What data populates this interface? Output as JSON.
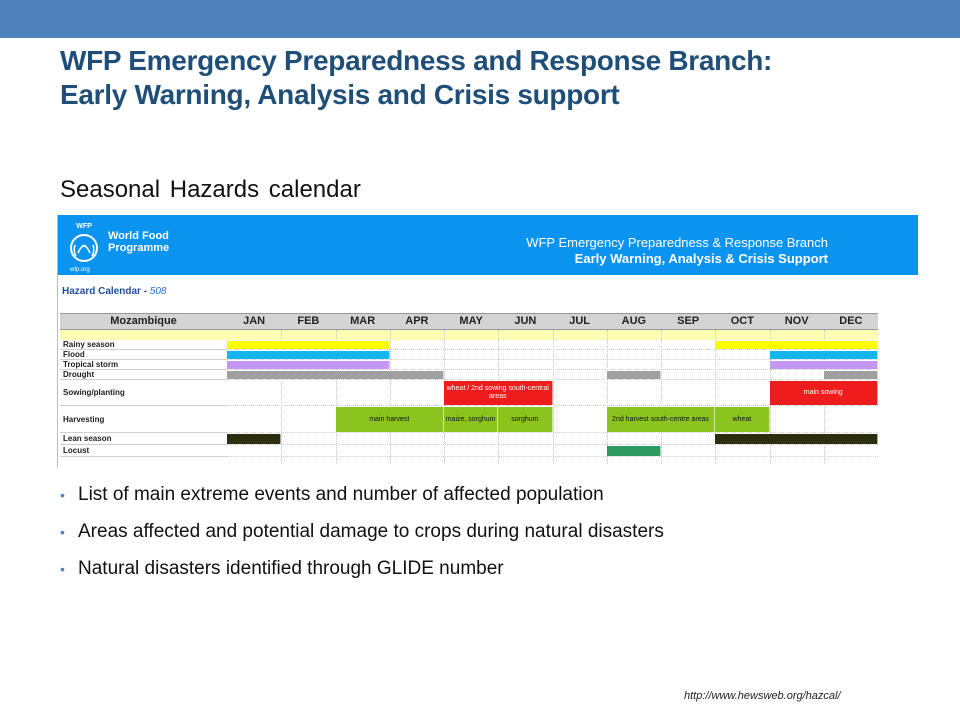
{
  "slide": {
    "title_line1": "WFP Emergency Preparedness and Response Branch:",
    "title_line2": "Early Warning, Analysis and Crisis support",
    "subtitle": "Seasonal  Hazards  calendar",
    "source_url": "http://www.hewsweb.org/hazcal/",
    "accent_color": "#4f81bd"
  },
  "calendar": {
    "logo_top": "WFP",
    "logo_line1": "World Food",
    "logo_line2": "Programme",
    "logo_url": "wfp.org",
    "banner_line1": "WFP Emergency Preparedness & Response Branch",
    "banner_line2": "Early Warning, Analysis & Crisis Support",
    "hazard_label": "Hazard Calendar - ",
    "hazard_label_code": "508",
    "country": "Mozambique",
    "months": [
      "JAN",
      "FEB",
      "MAR",
      "APR",
      "MAY",
      "JUN",
      "JUL",
      "AUG",
      "SEP",
      "OCT",
      "NOV",
      "DEC"
    ],
    "rows": [
      "Rainy season",
      "Flood",
      "Tropical storm",
      "Drought",
      "Sowing/planting",
      "Harvesting",
      "Lean season",
      "Locust"
    ],
    "bar_labels": {
      "wheat_sowing": "wheat / 2nd sowing south-central areas",
      "main_sowing": "main sowing",
      "main_harvest": "main harvest",
      "maize_sorghum": "maize, sorghum",
      "sorghum": "sorghum",
      "second_harvest": "2nd harvest south-centre areas",
      "wheat": "wheat"
    },
    "colors": {
      "rainy": "#ffff00",
      "flood": "#15b6ee",
      "storm": "#c596f2",
      "drought": "#a0a0a0",
      "sowing": "#ee1c1c",
      "harvest": "#8cc41f",
      "lean": "#2d2d10",
      "locust": "#2e9a62"
    }
  },
  "bullets": [
    "List of main extreme events and number of affected population",
    "Areas affected and potential damage to crops during natural disasters",
    "Natural disasters identified through GLIDE number"
  ]
}
